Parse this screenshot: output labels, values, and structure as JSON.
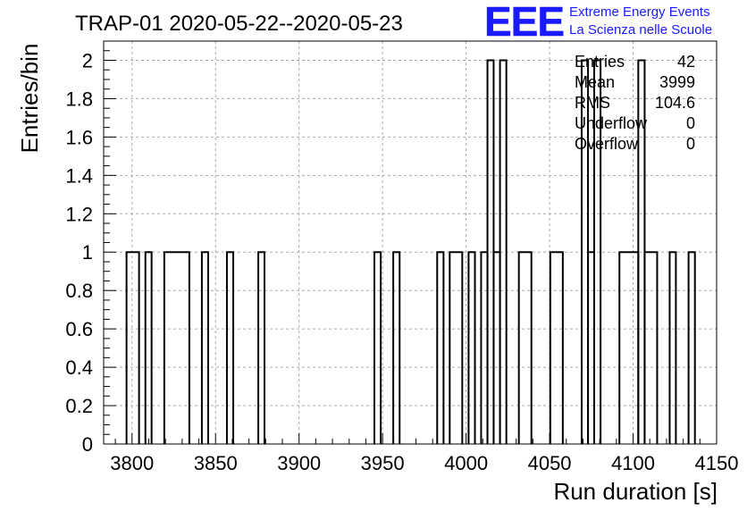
{
  "header": {
    "title": "TRAP-01 2020-05-22--2020-05-23",
    "logo_text": "EEE",
    "logo_line1": "Extreme Energy Events",
    "logo_line2": "La Scienza nelle Scuole",
    "logo_color": "#1a1aff"
  },
  "stats": {
    "rows": [
      {
        "label": "Entries",
        "value": "42"
      },
      {
        "label": "Mean",
        "value": "3999"
      },
      {
        "label": "RMS",
        "value": "104.6"
      },
      {
        "label": "Underflow",
        "value": "0"
      },
      {
        "label": "Overflow",
        "value": "0"
      }
    ]
  },
  "chart_data": {
    "type": "histogram",
    "title": "TRAP-01 2020-05-22--2020-05-23",
    "xlabel": "Run duration [s]",
    "ylabel": "Entries/bin",
    "xlim": [
      3783,
      4150
    ],
    "ylim": [
      0,
      2.1
    ],
    "grid": true,
    "x_ticks": [
      3800,
      3850,
      3900,
      3950,
      4000,
      4050,
      4100,
      4150
    ],
    "x_tick_labels": [
      "3800",
      "3850",
      "3900",
      "3950",
      "4000",
      "4050",
      "4100",
      "4150"
    ],
    "y_ticks": [
      0,
      0.2,
      0.4,
      0.6,
      0.8,
      1,
      1.2,
      1.4,
      1.6,
      1.8,
      2
    ],
    "y_tick_labels": [
      "0",
      "0.2",
      "0.4",
      "0.6",
      "0.8",
      "1",
      "1.2",
      "1.4",
      "1.6",
      "1.8",
      "2"
    ],
    "bins": [
      {
        "x0": 3796.7,
        "x1": 3804.2,
        "count": 1
      },
      {
        "x0": 3808.0,
        "x1": 3811.7,
        "count": 1
      },
      {
        "x0": 3819.3,
        "x1": 3834.3,
        "count": 1
      },
      {
        "x0": 3841.8,
        "x1": 3845.6,
        "count": 1
      },
      {
        "x0": 3856.8,
        "x1": 3860.6,
        "count": 1
      },
      {
        "x0": 3875.6,
        "x1": 3879.3,
        "count": 1
      },
      {
        "x0": 3945.1,
        "x1": 3948.9,
        "count": 1
      },
      {
        "x0": 3956.4,
        "x1": 3960.2,
        "count": 1
      },
      {
        "x0": 3982.7,
        "x1": 3986.5,
        "count": 1
      },
      {
        "x0": 3990.2,
        "x1": 3997.7,
        "count": 1
      },
      {
        "x0": 4001.5,
        "x1": 4005.3,
        "count": 1
      },
      {
        "x0": 4009.0,
        "x1": 4012.8,
        "count": 1
      },
      {
        "x0": 4012.8,
        "x1": 4016.5,
        "count": 2
      },
      {
        "x0": 4016.5,
        "x1": 4020.3,
        "count": 1
      },
      {
        "x0": 4020.3,
        "x1": 4024.1,
        "count": 2
      },
      {
        "x0": 4031.6,
        "x1": 4039.1,
        "count": 1
      },
      {
        "x0": 4050.4,
        "x1": 4057.9,
        "count": 1
      },
      {
        "x0": 4069.2,
        "x1": 4073.0,
        "count": 2
      },
      {
        "x0": 4073.0,
        "x1": 4076.7,
        "count": 1
      },
      {
        "x0": 4076.7,
        "x1": 4080.5,
        "count": 2
      },
      {
        "x0": 4091.8,
        "x1": 4103.1,
        "count": 1
      },
      {
        "x0": 4103.1,
        "x1": 4106.9,
        "count": 2
      },
      {
        "x0": 4106.9,
        "x1": 4114.4,
        "count": 1
      },
      {
        "x0": 4121.9,
        "x1": 4125.6,
        "count": 1
      },
      {
        "x0": 4133.2,
        "x1": 4137.0,
        "count": 1
      }
    ],
    "line_color": "#000000",
    "grid_color": "#aaaaaa"
  }
}
